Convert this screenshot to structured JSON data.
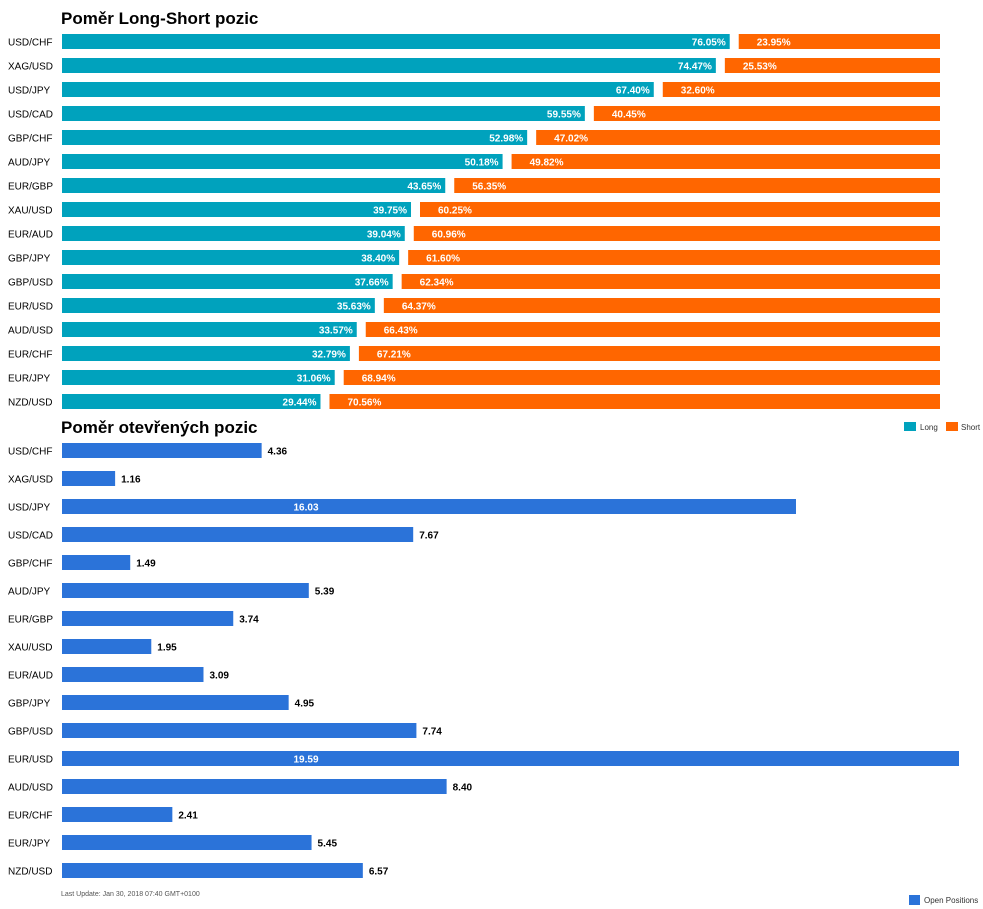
{
  "chart_data": [
    {
      "type": "bar",
      "stacked": true,
      "orientation": "horizontal",
      "title": "Poměr Long-Short pozic",
      "categories": [
        "USD/CHF",
        "XAG/USD",
        "USD/JPY",
        "USD/CAD",
        "GBP/CHF",
        "AUD/JPY",
        "EUR/GBP",
        "XAU/USD",
        "EUR/AUD",
        "GBP/JPY",
        "GBP/USD",
        "EUR/USD",
        "AUD/USD",
        "EUR/CHF",
        "EUR/JPY",
        "NZD/USD"
      ],
      "series": [
        {
          "name": "Long",
          "color": "#00a2bd",
          "values": [
            76.05,
            74.47,
            67.4,
            59.55,
            52.98,
            50.18,
            43.65,
            39.75,
            39.04,
            38.4,
            37.66,
            35.63,
            33.57,
            32.79,
            31.06,
            29.44
          ],
          "labels": [
            "76.05%",
            "74.47%",
            "67.40%",
            "59.55%",
            "52.98%",
            "50.18%",
            "43.65%",
            "39.75%",
            "39.04%",
            "38.40%",
            "37.66%",
            "35.63%",
            "33.57%",
            "32.79%",
            "31.06%",
            "29.44%"
          ]
        },
        {
          "name": "Short",
          "color": "#ff6600",
          "values": [
            23.95,
            25.53,
            32.6,
            40.45,
            47.02,
            49.82,
            56.35,
            60.25,
            60.96,
            61.6,
            62.34,
            64.37,
            66.43,
            67.21,
            68.94,
            70.56
          ],
          "labels": [
            "23.95%",
            "25.53%",
            "32.60%",
            "40.45%",
            "47.02%",
            "49.82%",
            "56.35%",
            "60.25%",
            "60.96%",
            "61.60%",
            "62.34%",
            "64.37%",
            "66.43%",
            "67.21%",
            "68.94%",
            "70.56%"
          ]
        }
      ],
      "xlim": [
        0,
        100
      ],
      "legend": "top-right"
    },
    {
      "type": "bar",
      "orientation": "horizontal",
      "title": "Poměr otevřených pozic",
      "categories": [
        "USD/CHF",
        "XAG/USD",
        "USD/JPY",
        "USD/CAD",
        "GBP/CHF",
        "AUD/JPY",
        "EUR/GBP",
        "XAU/USD",
        "EUR/AUD",
        "GBP/JPY",
        "GBP/USD",
        "EUR/USD",
        "AUD/USD",
        "EUR/CHF",
        "EUR/JPY",
        "NZD/USD"
      ],
      "series": [
        {
          "name": "Open Positions",
          "color": "#2b73d9",
          "values": [
            4.36,
            1.16,
            16.03,
            7.67,
            1.49,
            5.39,
            3.74,
            1.95,
            3.09,
            4.95,
            7.74,
            19.59,
            8.4,
            2.41,
            5.45,
            6.57
          ],
          "labels": [
            "4.36",
            "1.16",
            "16.03",
            "7.67",
            "1.49",
            "5.39",
            "3.74",
            "1.95",
            "3.09",
            "4.95",
            "7.74",
            "19.59",
            "8.40",
            "2.41",
            "5.45",
            "6.57"
          ]
        }
      ],
      "xlim": [
        0,
        19.59
      ],
      "legend": "bottom-right"
    }
  ],
  "footer": "Last Update: Jan 30, 2018 07:40 GMT+0100"
}
